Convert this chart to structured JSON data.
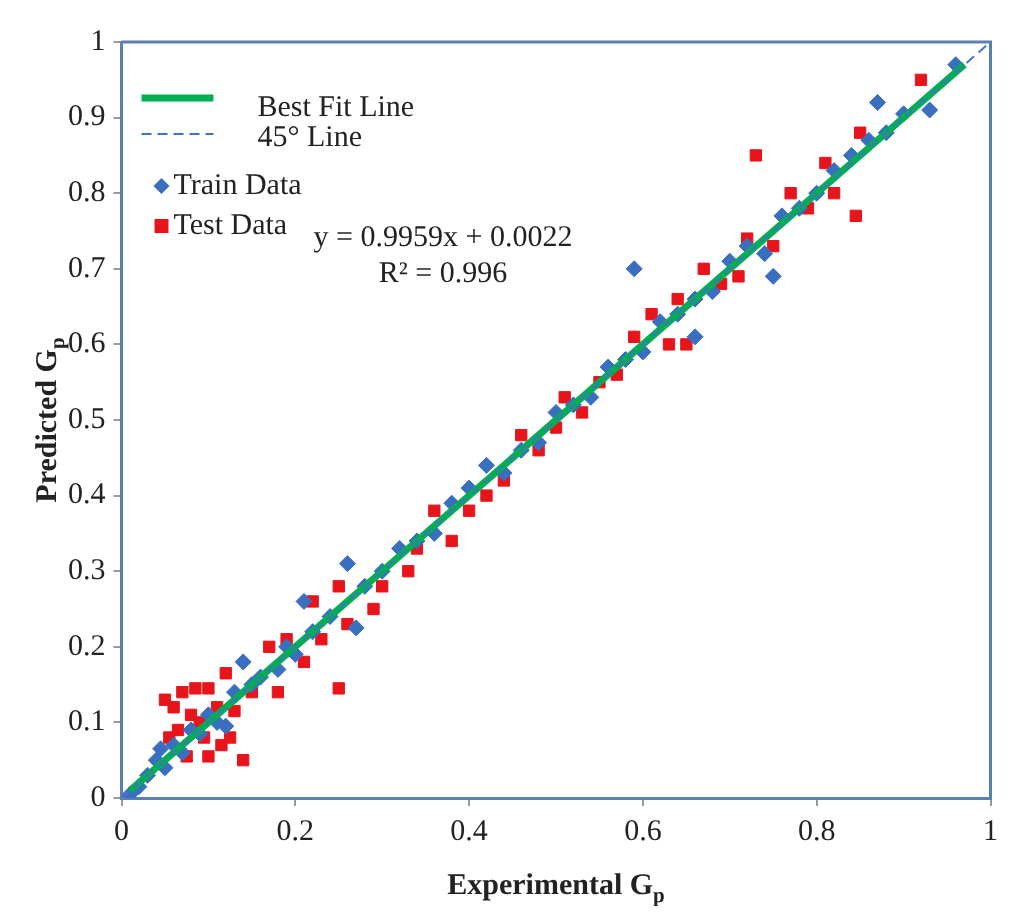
{
  "chart_data": {
    "type": "scatter",
    "xlabel": "Experimental G$_{p}$",
    "ylabel": "Predicted G$_{p}$",
    "xlim": [
      0,
      1
    ],
    "ylim": [
      0,
      1
    ],
    "xticks": [
      0,
      0.2,
      0.4,
      0.6,
      0.8,
      1
    ],
    "yticks": [
      0,
      0.1,
      0.2,
      0.3,
      0.4,
      0.5,
      0.6,
      0.7,
      0.8,
      0.9,
      1
    ],
    "grid": false,
    "legend": "top left",
    "annotations": [
      "y = 0.9959x + 0.0022",
      "R² = 0.996"
    ],
    "series": [
      {
        "name": "Best Fit Line",
        "type": "line",
        "color": "#00b050",
        "line_style": "solid",
        "marker": "none",
        "x": [
          0.01,
          0.97
        ],
        "values": [
          0.01,
          0.97
        ]
      },
      {
        "name": "45° Line",
        "type": "line",
        "color": "#4472c4",
        "line_style": "dashed",
        "marker": "none",
        "x": [
          0,
          1
        ],
        "values": [
          0,
          1
        ]
      },
      {
        "name": "Train Data",
        "type": "scatter",
        "color": "#3a6fc0",
        "marker": "diamond",
        "x": [
          0.01,
          0.02,
          0.03,
          0.04,
          0.045,
          0.05,
          0.06,
          0.07,
          0.08,
          0.09,
          0.1,
          0.11,
          0.12,
          0.13,
          0.14,
          0.15,
          0.16,
          0.18,
          0.19,
          0.2,
          0.21,
          0.22,
          0.24,
          0.26,
          0.27,
          0.28,
          0.3,
          0.32,
          0.34,
          0.36,
          0.38,
          0.4,
          0.42,
          0.44,
          0.46,
          0.48,
          0.5,
          0.52,
          0.54,
          0.56,
          0.58,
          0.59,
          0.6,
          0.62,
          0.64,
          0.66,
          0.66,
          0.68,
          0.7,
          0.72,
          0.74,
          0.75,
          0.76,
          0.78,
          0.8,
          0.82,
          0.84,
          0.86,
          0.87,
          0.88,
          0.9,
          0.93,
          0.96
        ],
        "values": [
          0.005,
          0.015,
          0.03,
          0.05,
          0.065,
          0.04,
          0.07,
          0.06,
          0.09,
          0.085,
          0.11,
          0.1,
          0.095,
          0.14,
          0.18,
          0.15,
          0.16,
          0.17,
          0.2,
          0.19,
          0.26,
          0.22,
          0.24,
          0.31,
          0.225,
          0.28,
          0.3,
          0.33,
          0.34,
          0.35,
          0.39,
          0.41,
          0.44,
          0.43,
          0.46,
          0.47,
          0.51,
          0.52,
          0.53,
          0.57,
          0.58,
          0.7,
          0.59,
          0.63,
          0.64,
          0.61,
          0.66,
          0.67,
          0.71,
          0.73,
          0.72,
          0.69,
          0.77,
          0.78,
          0.8,
          0.83,
          0.85,
          0.87,
          0.92,
          0.88,
          0.905,
          0.91,
          0.97
        ]
      },
      {
        "name": "Test Data",
        "type": "scatter",
        "color": "#e8141c",
        "marker": "square",
        "x": [
          0.05,
          0.055,
          0.06,
          0.065,
          0.07,
          0.075,
          0.08,
          0.085,
          0.09,
          0.095,
          0.1,
          0.1,
          0.11,
          0.115,
          0.12,
          0.125,
          0.13,
          0.14,
          0.15,
          0.17,
          0.18,
          0.19,
          0.21,
          0.22,
          0.23,
          0.25,
          0.25,
          0.26,
          0.29,
          0.3,
          0.33,
          0.34,
          0.36,
          0.38,
          0.4,
          0.42,
          0.44,
          0.46,
          0.48,
          0.5,
          0.51,
          0.53,
          0.55,
          0.57,
          0.59,
          0.61,
          0.63,
          0.64,
          0.65,
          0.67,
          0.69,
          0.71,
          0.72,
          0.73,
          0.75,
          0.77,
          0.79,
          0.81,
          0.82,
          0.845,
          0.85,
          0.92
        ],
        "values": [
          0.13,
          0.08,
          0.12,
          0.09,
          0.14,
          0.055,
          0.11,
          0.145,
          0.1,
          0.08,
          0.145,
          0.055,
          0.12,
          0.07,
          0.165,
          0.08,
          0.115,
          0.05,
          0.14,
          0.2,
          0.14,
          0.21,
          0.18,
          0.26,
          0.21,
          0.28,
          0.145,
          0.23,
          0.25,
          0.28,
          0.3,
          0.33,
          0.38,
          0.34,
          0.38,
          0.4,
          0.42,
          0.48,
          0.46,
          0.49,
          0.53,
          0.51,
          0.55,
          0.56,
          0.61,
          0.64,
          0.6,
          0.66,
          0.6,
          0.7,
          0.68,
          0.69,
          0.74,
          0.85,
          0.73,
          0.8,
          0.78,
          0.84,
          0.8,
          0.77,
          0.88,
          0.95
        ]
      }
    ]
  }
}
